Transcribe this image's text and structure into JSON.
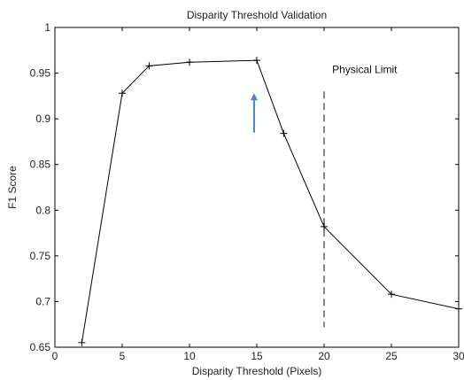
{
  "chart_data": {
    "type": "line",
    "title": "Disparity Threshold Validation",
    "xlabel": "Disparity Threshold (Pixels)",
    "ylabel": "F1 Score",
    "xlim": [
      0,
      30
    ],
    "ylim": [
      0.65,
      1.0
    ],
    "xticks": [
      0,
      5,
      10,
      15,
      20,
      25,
      30
    ],
    "xtick_labels": [
      "0",
      "5",
      "10",
      "15",
      "20",
      "25",
      "30"
    ],
    "yticks": [
      0.65,
      0.7,
      0.75,
      0.8,
      0.85,
      0.9,
      0.95,
      1.0
    ],
    "ytick_labels": [
      "0.65",
      "0.7",
      "0.75",
      "0.8",
      "0.85",
      "0.9",
      "0.95",
      "1"
    ],
    "grid": false,
    "series": [
      {
        "marker": "plus",
        "color": "#000000",
        "x": [
          2,
          5,
          7,
          10,
          15,
          17,
          20,
          25,
          30
        ],
        "y": [
          0.655,
          0.928,
          0.958,
          0.962,
          0.964,
          0.884,
          0.782,
          0.708,
          0.692
        ]
      }
    ],
    "annotations": {
      "reference_line": {
        "x": 20,
        "y_from": 0.672,
        "y_to": 0.93,
        "style": "dashed",
        "color": "#888888"
      },
      "reference_label": {
        "text": "Physical Limit",
        "x": 20.6,
        "y": 0.95
      },
      "arrow": {
        "x": 14.8,
        "y_from": 0.885,
        "y_to": 0.928,
        "color": "#4a86c8"
      }
    }
  }
}
